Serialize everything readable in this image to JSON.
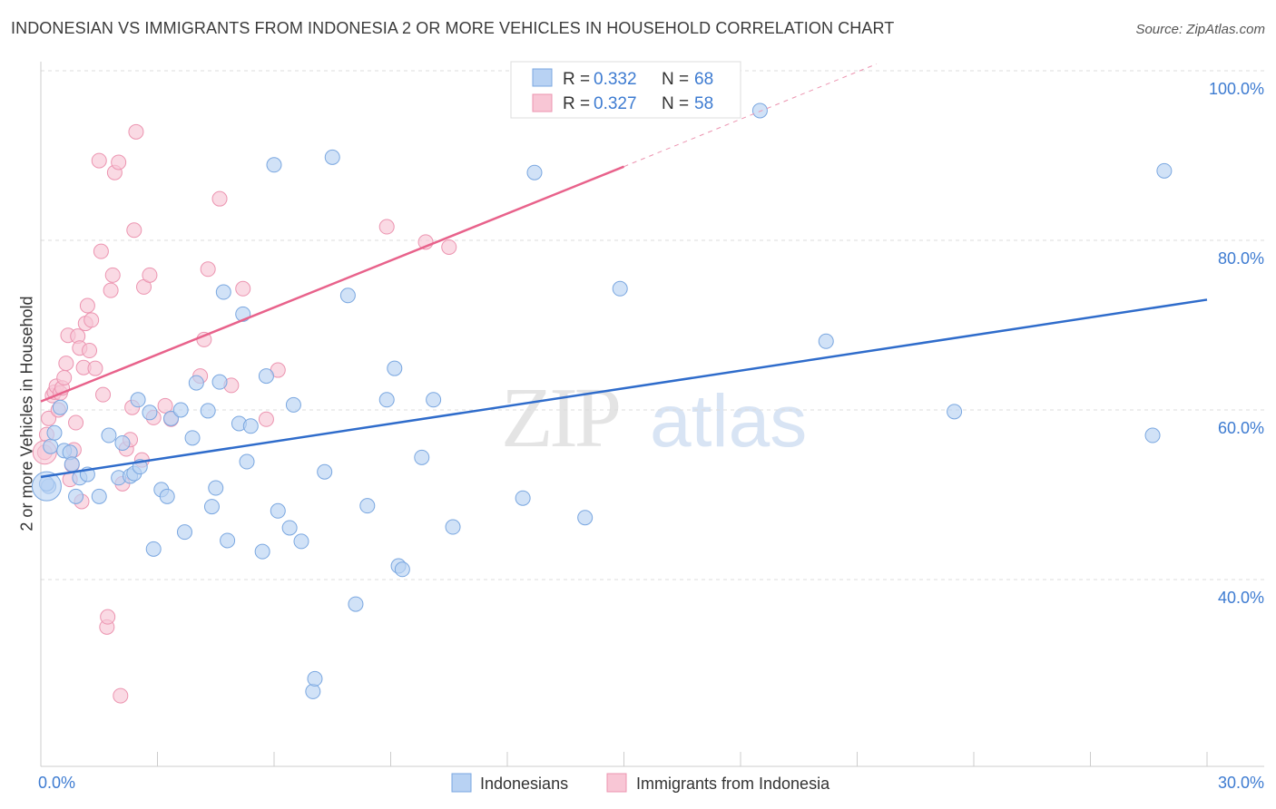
{
  "title": "INDONESIAN VS IMMIGRANTS FROM INDONESIA 2 OR MORE VEHICLES IN HOUSEHOLD CORRELATION CHART",
  "source": "Source: ZipAtlas.com",
  "watermark": {
    "zip": "ZIP",
    "atlas": "atlas"
  },
  "colors": {
    "blue_fill": "#b8d2f3",
    "blue_stroke": "#7aa7e0",
    "blue_line": "#2f6ccb",
    "pink_fill": "#f8c6d5",
    "pink_stroke": "#ec94b0",
    "pink_line": "#e8628b",
    "tick_text": "#3d7bd1",
    "grid": "#dddddd"
  },
  "legend": {
    "rows": [
      {
        "r_label": "R = ",
        "r_value": "0.332",
        "n_label": "N = ",
        "n_value": "68"
      },
      {
        "r_label": "R = ",
        "r_value": "0.327",
        "n_label": "N = ",
        "n_value": "58"
      }
    ]
  },
  "chart_data": {
    "type": "scatter",
    "title": "INDONESIAN VS IMMIGRANTS FROM INDONESIA 2 OR MORE VEHICLES IN HOUSEHOLD CORRELATION CHART",
    "xlabel": "",
    "ylabel": "2 or more Vehicles in Household",
    "xlim": [
      0,
      30
    ],
    "ylim": [
      20,
      104
    ],
    "x_tick_labels": [
      "0.0%",
      "30.0%"
    ],
    "y_ticks": [
      40,
      60,
      80,
      100
    ],
    "y_tick_labels": [
      "40.0%",
      "60.0%",
      "80.0%",
      "100.0%"
    ],
    "legend_position": "bottom-center",
    "series": [
      {
        "name": "Indonesians",
        "r": 0.332,
        "n": 68,
        "trend": {
          "x0": 0,
          "y0": 52.1,
          "x1": 30,
          "y1": 73.0
        },
        "points": [
          [
            0.2,
            51.0
          ],
          [
            0.25,
            55.7
          ],
          [
            0.35,
            57.3
          ],
          [
            0.5,
            60.3
          ],
          [
            0.6,
            55.2
          ],
          [
            0.75,
            55.0
          ],
          [
            0.8,
            53.6
          ],
          [
            0.9,
            49.8
          ],
          [
            1.0,
            52.0
          ],
          [
            1.5,
            49.8
          ],
          [
            1.75,
            57.0
          ],
          [
            2.0,
            52.0
          ],
          [
            2.1,
            56.1
          ],
          [
            2.3,
            52.2
          ],
          [
            2.4,
            52.5
          ],
          [
            2.5,
            61.2
          ],
          [
            2.55,
            53.3
          ],
          [
            2.8,
            59.7
          ],
          [
            2.9,
            43.6
          ],
          [
            3.1,
            50.6
          ],
          [
            3.25,
            49.8
          ],
          [
            3.35,
            59.0
          ],
          [
            3.6,
            60.0
          ],
          [
            3.7,
            45.6
          ],
          [
            3.9,
            56.7
          ],
          [
            4.0,
            63.2
          ],
          [
            4.3,
            59.9
          ],
          [
            4.4,
            48.6
          ],
          [
            4.5,
            50.8
          ],
          [
            4.6,
            63.3
          ],
          [
            4.7,
            73.9
          ],
          [
            4.8,
            44.6
          ],
          [
            5.1,
            58.4
          ],
          [
            5.2,
            71.3
          ],
          [
            5.3,
            53.9
          ],
          [
            5.4,
            58.1
          ],
          [
            5.7,
            43.3
          ],
          [
            5.8,
            64.0
          ],
          [
            6.0,
            88.9
          ],
          [
            6.1,
            48.1
          ],
          [
            6.4,
            46.1
          ],
          [
            6.5,
            60.6
          ],
          [
            6.7,
            44.5
          ],
          [
            7.0,
            26.8
          ],
          [
            7.05,
            28.3
          ],
          [
            7.3,
            52.7
          ],
          [
            7.5,
            89.8
          ],
          [
            7.9,
            73.5
          ],
          [
            8.1,
            37.1
          ],
          [
            8.4,
            48.7
          ],
          [
            8.9,
            61.2
          ],
          [
            9.1,
            64.9
          ],
          [
            9.2,
            41.6
          ],
          [
            9.3,
            41.2
          ],
          [
            9.8,
            54.4
          ],
          [
            10.1,
            61.2
          ],
          [
            10.6,
            46.2
          ],
          [
            12.4,
            49.6
          ],
          [
            12.7,
            88.0
          ],
          [
            14.0,
            47.3
          ],
          [
            14.9,
            74.3
          ],
          [
            18.5,
            95.3
          ],
          [
            20.2,
            68.1
          ],
          [
            23.5,
            59.8
          ],
          [
            28.6,
            57.0
          ],
          [
            28.9,
            88.2
          ],
          [
            0.15,
            51.3
          ],
          [
            1.2,
            52.4
          ]
        ]
      },
      {
        "name": "Immigrants from Indonesia",
        "r": 0.327,
        "n": 58,
        "trend": {
          "x0": 0,
          "y0": 61.0,
          "x1": 15,
          "y1": 88.7,
          "dash_x1": 21.5,
          "dash_y1": 100.8
        },
        "points": [
          [
            0.1,
            55.0
          ],
          [
            0.15,
            57.1
          ],
          [
            0.2,
            59.0
          ],
          [
            0.3,
            61.7
          ],
          [
            0.35,
            62.1
          ],
          [
            0.4,
            62.8
          ],
          [
            0.45,
            60.0
          ],
          [
            0.5,
            62.0
          ],
          [
            0.55,
            62.6
          ],
          [
            0.6,
            63.8
          ],
          [
            0.65,
            65.5
          ],
          [
            0.7,
            68.8
          ],
          [
            0.75,
            51.8
          ],
          [
            0.8,
            53.5
          ],
          [
            0.85,
            55.3
          ],
          [
            0.9,
            58.5
          ],
          [
            0.95,
            68.7
          ],
          [
            1.0,
            67.3
          ],
          [
            1.05,
            49.2
          ],
          [
            1.1,
            65.0
          ],
          [
            1.15,
            70.2
          ],
          [
            1.2,
            72.3
          ],
          [
            1.25,
            67.0
          ],
          [
            1.3,
            70.6
          ],
          [
            1.4,
            64.9
          ],
          [
            1.5,
            89.4
          ],
          [
            1.55,
            78.7
          ],
          [
            1.6,
            61.8
          ],
          [
            1.7,
            34.4
          ],
          [
            1.72,
            35.6
          ],
          [
            1.8,
            74.1
          ],
          [
            1.85,
            75.9
          ],
          [
            1.9,
            88.0
          ],
          [
            2.0,
            89.2
          ],
          [
            2.05,
            26.3
          ],
          [
            2.1,
            51.3
          ],
          [
            2.2,
            55.4
          ],
          [
            2.3,
            56.5
          ],
          [
            2.35,
            60.3
          ],
          [
            2.4,
            81.2
          ],
          [
            2.45,
            92.8
          ],
          [
            2.6,
            54.1
          ],
          [
            2.65,
            74.5
          ],
          [
            2.8,
            75.9
          ],
          [
            2.9,
            59.1
          ],
          [
            3.2,
            60.5
          ],
          [
            3.35,
            58.9
          ],
          [
            4.1,
            64.0
          ],
          [
            4.2,
            68.3
          ],
          [
            4.3,
            76.6
          ],
          [
            4.6,
            84.9
          ],
          [
            4.9,
            62.9
          ],
          [
            5.2,
            74.3
          ],
          [
            5.8,
            58.9
          ],
          [
            6.1,
            64.7
          ],
          [
            8.9,
            81.6
          ],
          [
            9.9,
            79.8
          ],
          [
            10.5,
            79.2
          ]
        ]
      }
    ]
  },
  "bottom_legend": [
    {
      "label": "Indonesians"
    },
    {
      "label": "Immigrants from Indonesia"
    }
  ]
}
